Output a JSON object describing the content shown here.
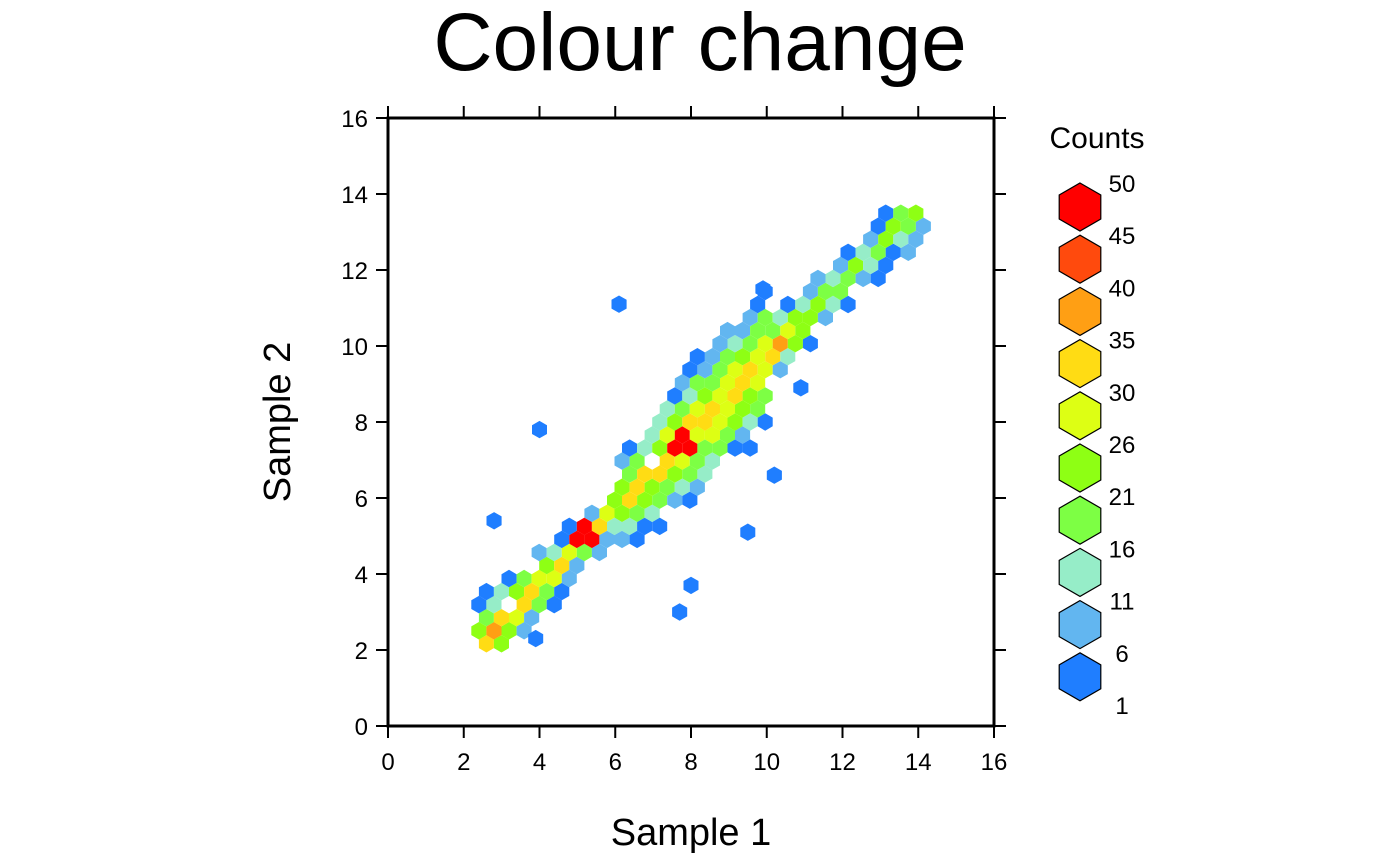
{
  "chart_data": {
    "type": "heatmap",
    "title": "Colour change",
    "xlabel": "Sample 1",
    "ylabel": "Sample 2",
    "xlim": [
      0,
      16
    ],
    "ylim": [
      0,
      16
    ],
    "xticks": [
      "0",
      "2",
      "4",
      "6",
      "8",
      "10",
      "12",
      "14",
      "16"
    ],
    "yticks": [
      "0",
      "2",
      "4",
      "6",
      "8",
      "10",
      "12",
      "14",
      "16"
    ],
    "grid": false,
    "legend": {
      "title": "Counts",
      "placement": "right",
      "labels": [
        "50",
        "45",
        "40",
        "35",
        "30",
        "26",
        "21",
        "16",
        "11",
        "6",
        "1"
      ],
      "colors": [
        "#ff0000",
        "#ff4a0d",
        "#ff9f14",
        "#ffdc14",
        "#ddff14",
        "#8eff14",
        "#7dff44",
        "#96edc8",
        "#62b6f0",
        "#1f7eff"
      ]
    },
    "description": "Hexagonal bin plot: counts concentrated along the diagonal y ≈ x from about (2.4, 2) to (14, 13.5); highest counts (≈50) near (5.3, 5) and (7.8, 7.4); sparse outliers at (6.1, 11.1), (2.8, 5.4), (4, 7.8), (7.7, 3)."
  }
}
